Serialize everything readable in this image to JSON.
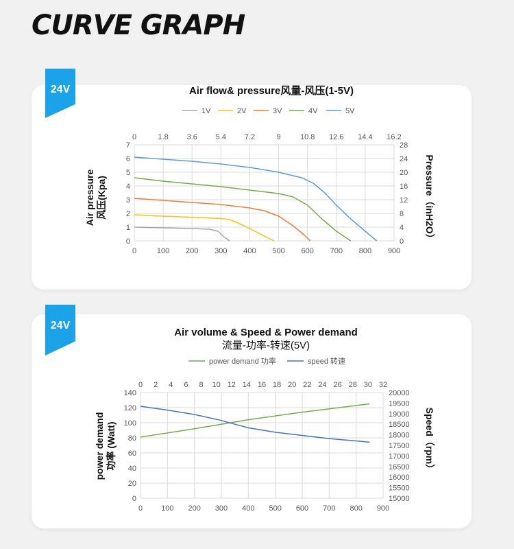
{
  "page_title": "CURVE GRAPH",
  "badges": [
    "24V",
    "24V"
  ],
  "chart_data": [
    {
      "type": "line",
      "title": "Air flow& pressure风量-风压(1-5V)",
      "x_bottom_ticks": [
        "0",
        "100",
        "200",
        "300",
        "400",
        "500",
        "600",
        "700",
        "800",
        "900"
      ],
      "x_top_ticks": [
        "0",
        "1.8",
        "3.6",
        "5.4",
        "7.2",
        "9",
        "10.8",
        "12.6",
        "14.4",
        "16.2"
      ],
      "y_left_ticks": [
        "0",
        "1",
        "2",
        "3",
        "4",
        "5",
        "6",
        "7"
      ],
      "y_right_ticks": [
        "0",
        "4",
        "8",
        "12",
        "16",
        "20",
        "24",
        "28"
      ],
      "xlim": [
        0,
        900
      ],
      "ylim": [
        0,
        7
      ],
      "ylabel_left": [
        "Air pressure",
        "风压(Kpa)"
      ],
      "ylabel_right": "Pressure（inH2O）",
      "grid": true,
      "legend_position": "top",
      "series": [
        {
          "name": "1V",
          "color": "#a5a5a5",
          "points": [
            [
              0,
              1.0
            ],
            [
              100,
              0.95
            ],
            [
              200,
              0.9
            ],
            [
              260,
              0.85
            ],
            [
              290,
              0.7
            ],
            [
              310,
              0.3
            ],
            [
              330,
              0
            ]
          ]
        },
        {
          "name": "2V",
          "color": "#ffc000",
          "points": [
            [
              0,
              1.9
            ],
            [
              100,
              1.8
            ],
            [
              200,
              1.72
            ],
            [
              300,
              1.63
            ],
            [
              330,
              1.55
            ],
            [
              360,
              1.3
            ],
            [
              400,
              0.9
            ],
            [
              450,
              0.35
            ],
            [
              485,
              0
            ]
          ]
        },
        {
          "name": "3V",
          "color": "#ed7d31",
          "points": [
            [
              0,
              3.1
            ],
            [
              100,
              2.95
            ],
            [
              200,
              2.8
            ],
            [
              300,
              2.65
            ],
            [
              400,
              2.4
            ],
            [
              450,
              2.2
            ],
            [
              500,
              1.8
            ],
            [
              550,
              1.1
            ],
            [
              590,
              0.4
            ],
            [
              610,
              0
            ]
          ]
        },
        {
          "name": "4V",
          "color": "#70ad47",
          "points": [
            [
              0,
              4.6
            ],
            [
              100,
              4.35
            ],
            [
              200,
              4.15
            ],
            [
              300,
              3.95
            ],
            [
              400,
              3.7
            ],
            [
              500,
              3.45
            ],
            [
              550,
              3.2
            ],
            [
              600,
              2.6
            ],
            [
              650,
              1.6
            ],
            [
              700,
              0.7
            ],
            [
              750,
              0
            ]
          ]
        },
        {
          "name": "5V",
          "color": "#5b9bd5",
          "points": [
            [
              0,
              6.1
            ],
            [
              100,
              5.95
            ],
            [
              200,
              5.8
            ],
            [
              300,
              5.6
            ],
            [
              400,
              5.35
            ],
            [
              500,
              5.0
            ],
            [
              580,
              4.6
            ],
            [
              620,
              4.2
            ],
            [
              660,
              3.5
            ],
            [
              700,
              2.6
            ],
            [
              750,
              1.6
            ],
            [
              800,
              0.7
            ],
            [
              840,
              0
            ]
          ]
        }
      ]
    },
    {
      "type": "line",
      "title": "Air volume  &  Speed  &  Power demand",
      "subtitle": "流量-功率-转速(5V)",
      "x_bottom_ticks": [
        "0",
        "100",
        "200",
        "300",
        "400",
        "500",
        "600",
        "700",
        "800",
        "900"
      ],
      "x_top_ticks": [
        "0",
        "2",
        "4",
        "6",
        "8",
        "10",
        "12",
        "14",
        "16",
        "18",
        "20",
        "22",
        "24",
        "26",
        "28",
        "30",
        "32"
      ],
      "y_left_ticks": [
        "0",
        "20",
        "40",
        "60",
        "80",
        "100",
        "120",
        "140"
      ],
      "y_right_ticks": [
        "15000",
        "15500",
        "16000",
        "16500",
        "17000",
        "17500",
        "18000",
        "18500",
        "19000",
        "19500",
        "20000"
      ],
      "xlim": [
        0,
        900
      ],
      "ylim": [
        0,
        140
      ],
      "y_right_lim": [
        15000,
        20000
      ],
      "ylabel_left": [
        "power demand",
        "功率 (Watt)"
      ],
      "ylabel_right": "Speed（rpm）",
      "grid": true,
      "legend_position": "top",
      "series": [
        {
          "name": "power demand 功率",
          "color": "#70ad47",
          "axis": "left",
          "points": [
            [
              0,
              81
            ],
            [
              200,
              92
            ],
            [
              400,
              104
            ],
            [
              600,
              114
            ],
            [
              850,
              125
            ]
          ]
        },
        {
          "name": "speed 转速",
          "color": "#4472c4",
          "axis": "right",
          "points": [
            [
              0,
              19350
            ],
            [
              100,
              19170
            ],
            [
              200,
              18960
            ],
            [
              300,
              18680
            ],
            [
              350,
              18500
            ],
            [
              400,
              18330
            ],
            [
              500,
              18120
            ],
            [
              600,
              17970
            ],
            [
              700,
              17820
            ],
            [
              800,
              17710
            ],
            [
              850,
              17650
            ]
          ]
        }
      ]
    }
  ]
}
